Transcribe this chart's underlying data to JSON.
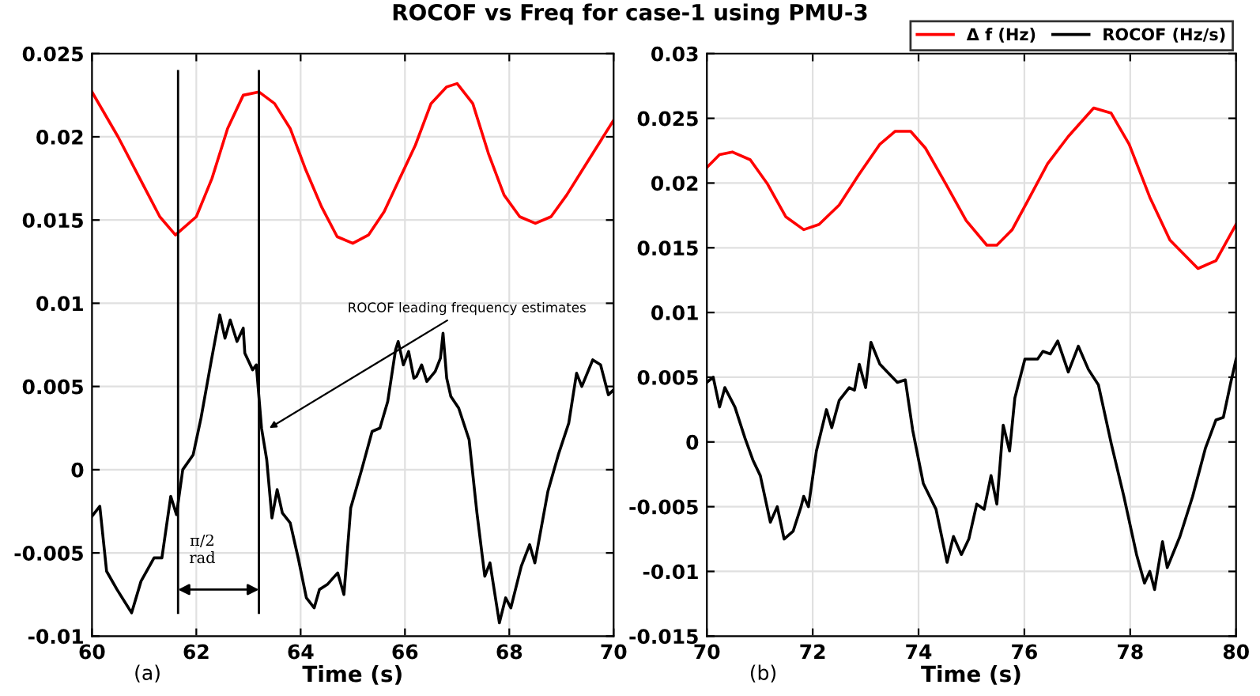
{
  "chart_data": [
    {
      "type": "line",
      "title": "ROCOF vs Freq for case-1 using PMU-3",
      "xlabel": "Time (s)",
      "xlim": [
        60,
        70
      ],
      "xticks": [
        60,
        62,
        64,
        66,
        68,
        70
      ],
      "ylim": [
        -0.01,
        0.025
      ],
      "yticks": [
        -0.01,
        -0.005,
        0,
        0.005,
        0.01,
        0.015,
        0.02,
        0.025
      ],
      "grid": true,
      "legend": false,
      "series": [
        {
          "color": "#ff0000",
          "x": [
            60,
            60.5,
            61,
            61.3,
            61.6,
            62,
            62.3,
            62.6,
            62.9,
            63.2,
            63.5,
            63.8,
            64.1,
            64.4,
            64.7,
            65.0,
            65.3,
            65.6,
            65.9,
            66.2,
            66.5,
            66.8,
            67.0,
            67.3,
            67.6,
            67.9,
            68.2,
            68.5,
            68.8,
            69.1,
            69.4,
            69.7,
            70
          ],
          "values": [
            0.0227,
            0.02,
            0.017,
            0.0152,
            0.0141,
            0.0152,
            0.0175,
            0.0205,
            0.0225,
            0.0227,
            0.022,
            0.0205,
            0.018,
            0.0158,
            0.014,
            0.0136,
            0.0141,
            0.0155,
            0.0175,
            0.0195,
            0.022,
            0.023,
            0.0232,
            0.022,
            0.019,
            0.0165,
            0.0152,
            0.0148,
            0.0152,
            0.0165,
            0.018,
            0.0195,
            0.021
          ]
        },
        {
          "color": "#000000",
          "x": [
            60,
            60.15,
            60.28,
            60.48,
            60.76,
            60.94,
            61.19,
            61.34,
            61.51,
            61.62,
            61.74,
            61.94,
            62.09,
            62.29,
            62.45,
            62.55,
            62.65,
            62.78,
            62.9,
            62.93,
            63.08,
            63.15,
            63.25,
            63.35,
            63.45,
            63.55,
            63.65,
            63.8,
            63.96,
            64.11,
            64.26,
            64.36,
            64.51,
            64.71,
            64.83,
            64.96,
            65.17,
            65.37,
            65.52,
            65.67,
            65.82,
            65.87,
            65.97,
            66.07,
            66.17,
            66.22,
            66.32,
            66.42,
            66.58,
            66.68,
            66.73,
            66.8,
            66.88,
            67.03,
            67.23,
            67.38,
            67.53,
            67.63,
            67.81,
            67.93,
            68.03,
            68.23,
            68.39,
            68.49,
            68.74,
            68.94,
            69.14,
            69.29,
            69.39,
            69.6,
            69.75,
            69.9,
            70
          ],
          "values": [
            -0.0028,
            -0.0022,
            -0.0061,
            -0.0072,
            -0.0086,
            -0.0067,
            -0.0053,
            -0.0053,
            -0.0016,
            -0.0027,
            0.0,
            0.0009,
            0.0031,
            0.0066,
            0.0093,
            0.0079,
            0.009,
            0.0077,
            0.0085,
            0.007,
            0.006,
            0.0063,
            0.0025,
            0.0006,
            -0.0029,
            -0.0012,
            -0.0026,
            -0.0032,
            -0.0054,
            -0.0077,
            -0.0083,
            -0.0072,
            -0.0069,
            -0.0062,
            -0.0075,
            -0.0023,
            0.0,
            0.0023,
            0.0025,
            0.0041,
            0.0072,
            0.0077,
            0.0063,
            0.0071,
            0.0055,
            0.0056,
            0.0063,
            0.0053,
            0.0059,
            0.0067,
            0.0082,
            0.0055,
            0.0044,
            0.0037,
            0.0018,
            -0.0026,
            -0.0064,
            -0.0056,
            -0.0092,
            -0.0077,
            -0.0083,
            -0.0058,
            -0.0045,
            -0.0056,
            -0.0013,
            0.0009,
            0.0028,
            0.0058,
            0.005,
            0.0066,
            0.0063,
            0.0045,
            0.0048
          ]
        }
      ],
      "ref_lines": [
        {
          "axis": "x",
          "value": 61.65,
          "color": "#000000"
        },
        {
          "axis": "x",
          "value": 63.2,
          "color": "#000000"
        }
      ],
      "annotations": [
        "(a)",
        {
          "text": "ROCOF leading frequency estimates",
          "x": 63.4,
          "y": 0.0025
        },
        "π/2\nrad"
      ]
    },
    {
      "type": "line",
      "xlabel": "Time (s)",
      "xlim": [
        70,
        80
      ],
      "xticks": [
        70,
        72,
        74,
        76,
        78,
        80
      ],
      "ylim": [
        -0.015,
        0.03
      ],
      "yticks": [
        -0.015,
        -0.01,
        -0.005,
        0,
        0.005,
        0.01,
        0.015,
        0.02,
        0.025,
        0.03
      ],
      "grid": true,
      "legend": "top right",
      "series": [
        {
          "name": "Δ f (Hz)",
          "color": "#ff0000",
          "x": [
            70,
            70.24,
            70.48,
            70.82,
            71.15,
            71.49,
            71.83,
            72.12,
            72.5,
            72.88,
            73.27,
            73.56,
            73.85,
            74.13,
            74.52,
            74.9,
            75.29,
            75.48,
            75.77,
            76.06,
            76.44,
            76.83,
            77.31,
            77.64,
            77.98,
            78.37,
            78.75,
            79.28,
            79.62,
            80
          ],
          "values": [
            0.0212,
            0.0222,
            0.0224,
            0.0218,
            0.0199,
            0.0174,
            0.0164,
            0.0168,
            0.0183,
            0.0207,
            0.023,
            0.024,
            0.024,
            0.0227,
            0.0199,
            0.0171,
            0.0152,
            0.0152,
            0.0164,
            0.0186,
            0.0215,
            0.0236,
            0.0258,
            0.0254,
            0.023,
            0.0189,
            0.0156,
            0.0134,
            0.014,
            0.0168
          ]
        },
        {
          "name": "ROCOF (Hz/s)",
          "color": "#000000",
          "x": [
            70,
            70.12,
            70.24,
            70.34,
            70.53,
            70.72,
            70.87,
            71.01,
            71.2,
            71.33,
            71.46,
            71.63,
            71.78,
            71.83,
            71.92,
            72.07,
            72.26,
            72.36,
            72.5,
            72.69,
            72.79,
            72.88,
            73.0,
            73.1,
            73.27,
            73.46,
            73.6,
            73.75,
            73.89,
            74.09,
            74.33,
            74.54,
            74.66,
            74.81,
            74.95,
            75.1,
            75.24,
            75.37,
            75.48,
            75.6,
            75.72,
            75.82,
            76.01,
            76.25,
            76.35,
            76.49,
            76.63,
            76.83,
            77.02,
            77.21,
            77.4,
            77.64,
            77.88,
            78.12,
            78.27,
            78.37,
            78.46,
            78.61,
            78.7,
            78.94,
            79.18,
            79.42,
            79.62,
            79.76,
            79.9,
            80
          ],
          "values": [
            0.0046,
            0.005,
            0.0027,
            0.0042,
            0.0027,
            0.0003,
            -0.0014,
            -0.0026,
            -0.0062,
            -0.005,
            -0.0075,
            -0.0069,
            -0.005,
            -0.0042,
            -0.005,
            -0.0007,
            0.0025,
            0.0011,
            0.0032,
            0.0042,
            0.004,
            0.006,
            0.0042,
            0.0077,
            0.006,
            0.0052,
            0.0046,
            0.0048,
            0.0009,
            -0.0032,
            -0.0052,
            -0.0093,
            -0.0073,
            -0.0087,
            -0.0075,
            -0.0048,
            -0.0052,
            -0.0026,
            -0.0048,
            0.0013,
            -0.0007,
            0.0034,
            0.0064,
            0.0064,
            0.007,
            0.0068,
            0.0078,
            0.0054,
            0.0074,
            0.0056,
            0.0044,
            -0.0001,
            -0.0042,
            -0.0087,
            -0.0109,
            -0.01,
            -0.0114,
            -0.0077,
            -0.0097,
            -0.0073,
            -0.0042,
            -0.0005,
            0.0017,
            0.0019,
            0.0046,
            0.0064
          ]
        }
      ],
      "annotations": [
        "(b)"
      ]
    }
  ]
}
